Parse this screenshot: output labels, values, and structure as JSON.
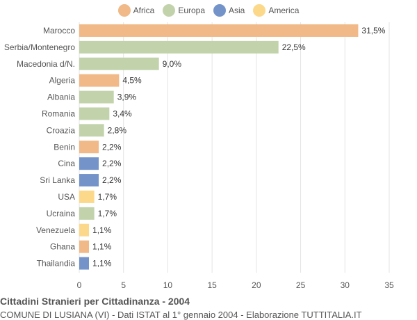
{
  "chart_data": {
    "type": "bar",
    "orientation": "horizontal",
    "categories": [
      "Marocco",
      "Serbia/Montenegro",
      "Macedonia d/N.",
      "Algeria",
      "Albania",
      "Romania",
      "Croazia",
      "Benin",
      "Cina",
      "Sri Lanka",
      "USA",
      "Ucraina",
      "Venezuela",
      "Ghana",
      "Thailandia"
    ],
    "values": [
      31.5,
      22.5,
      9.0,
      4.5,
      3.9,
      3.4,
      2.8,
      2.2,
      2.2,
      2.2,
      1.7,
      1.7,
      1.1,
      1.1,
      1.1
    ],
    "value_labels": [
      "31,5%",
      "22,5%",
      "9,0%",
      "4,5%",
      "3,9%",
      "3,4%",
      "2,8%",
      "2,2%",
      "2,2%",
      "2,2%",
      "1,7%",
      "1,7%",
      "1,1%",
      "1,1%",
      "1,1%"
    ],
    "groups": [
      "Africa",
      "Europa",
      "Europa",
      "Africa",
      "Europa",
      "Europa",
      "Europa",
      "Africa",
      "Asia",
      "Asia",
      "America",
      "Europa",
      "America",
      "Africa",
      "Asia"
    ],
    "legend": [
      {
        "name": "Africa",
        "color": "#f0b987"
      },
      {
        "name": "Europa",
        "color": "#c2d3ab"
      },
      {
        "name": "Asia",
        "color": "#7494c9"
      },
      {
        "name": "America",
        "color": "#fcd98a"
      }
    ],
    "x_ticks": [
      0,
      5,
      10,
      15,
      20,
      25,
      30,
      35
    ],
    "xlim": [
      0,
      35
    ],
    "grid": true,
    "legend_position": "top"
  },
  "footer": {
    "title": "Cittadini Stranieri per Cittadinanza - 2004",
    "subtitle": "COMUNE DI LUSIANA (VI) - Dati ISTAT al 1° gennaio 2004 - Elaborazione TUTTITALIA.IT"
  }
}
